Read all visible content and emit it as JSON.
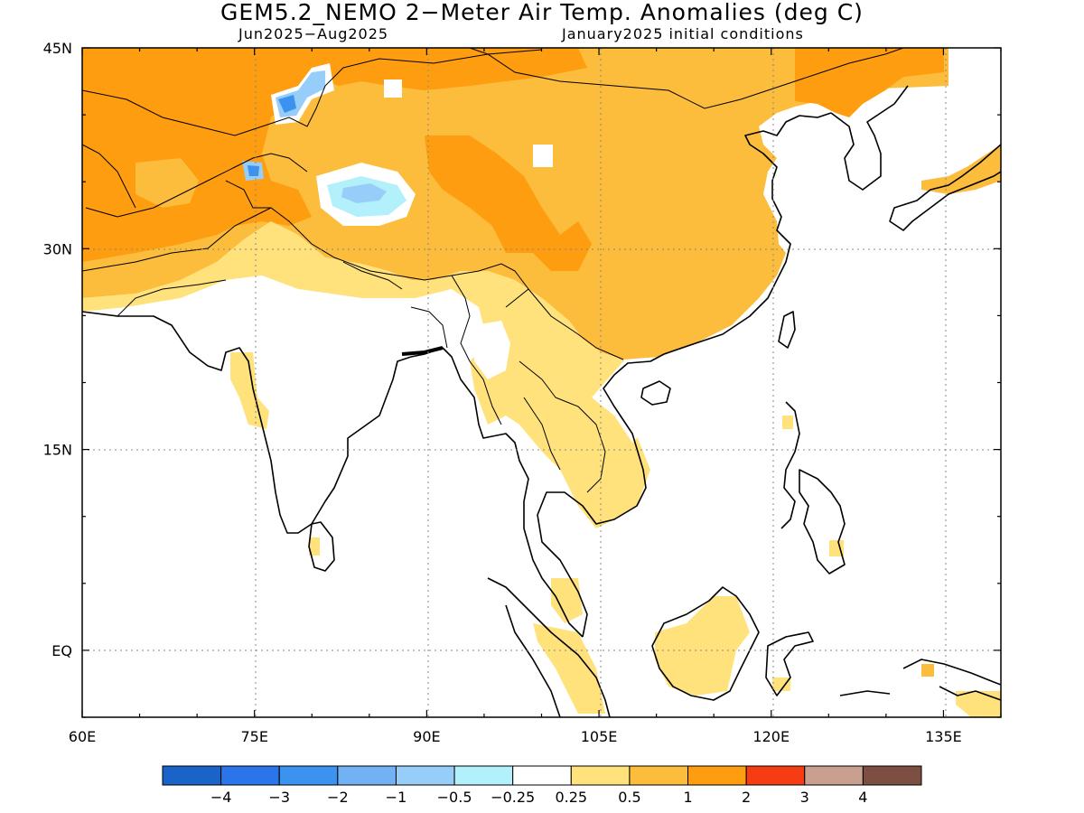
{
  "title": "GEM5.2_NEMO 2−Meter Air Temp. Anomalies (deg C)",
  "subtitle_left": "Jun2025−Aug2025",
  "subtitle_right": "January2025 initial conditions",
  "map": {
    "lon_range": [
      60,
      140
    ],
    "lat_range": [
      -5,
      45
    ],
    "lon_ticks": [
      "60E",
      "75E",
      "90E",
      "105E",
      "120E",
      "135E"
    ],
    "lon_tick_values": [
      60,
      75,
      90,
      105,
      120,
      135
    ],
    "lat_ticks": [
      "EQ",
      "15N",
      "30N",
      "45N"
    ],
    "lat_tick_values": [
      0,
      15,
      30,
      45
    ],
    "gridlines": "dotted"
  },
  "colorbar": {
    "colors": [
      "#1a63c8",
      "#2a75ea",
      "#3b93ef",
      "#72b1f4",
      "#97cdf9",
      "#b2f0fb",
      "#ffffff",
      "#ffe27c",
      "#fcbc3c",
      "#fd9d0f",
      "#f63c12",
      "#c9a08f",
      "#7c4f42"
    ],
    "labels": [
      "−4",
      "−3",
      "−2",
      "−1",
      "−0.5",
      "−0.25",
      "0.25",
      "0.5",
      "1",
      "2",
      "3",
      "4"
    ]
  }
}
